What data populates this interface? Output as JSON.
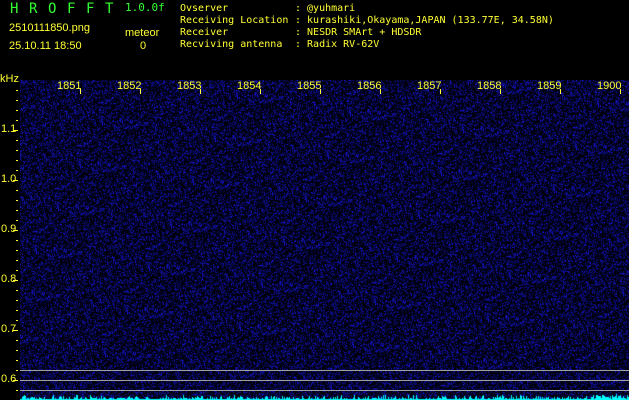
{
  "header": {
    "title_letters": [
      "H",
      "R",
      "O",
      "F",
      "F",
      "T"
    ],
    "version": "1.0.0f",
    "filename": "2510111850.png",
    "datetime": "25.10.11 18:50",
    "meteor_label": "meteor",
    "meteor_count": "0",
    "info": [
      {
        "label": "Ovserver",
        "value": ": @yuhmari"
      },
      {
        "label": "Receiving Location",
        "value": ": kurashiki,Okayama,JAPAN (133.77E, 34.58N)"
      },
      {
        "label": "Receiver",
        "value": ": NESDR SMArt + HDSDR"
      },
      {
        "label": "Recviving antenna",
        "value": ": Radix RV-62V"
      }
    ]
  },
  "spectrogram": {
    "y_unit": "kHz",
    "y_labels": [
      "1.1",
      "1.0",
      "0.9",
      "0.8",
      "0.7",
      "0.6"
    ],
    "x_labels": [
      "1851",
      "1852",
      "1853",
      "1854",
      "1855",
      "1856",
      "1857",
      "1858",
      "1859",
      "1900"
    ],
    "colors": {
      "noise": "#1a1aff",
      "baseline": "#00ffff",
      "axis": "#ffff33"
    }
  }
}
